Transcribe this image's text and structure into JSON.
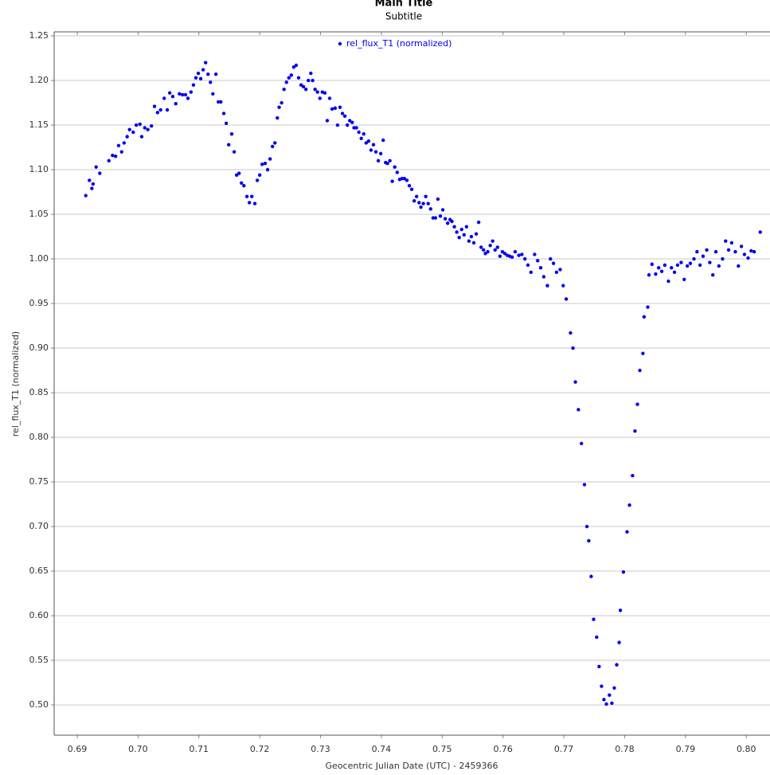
{
  "chart_data": {
    "type": "scatter",
    "title": "Main Title",
    "subtitle": "Subtitle",
    "x_label": "Geocentric Julian Date (UTC) - 2459366",
    "y_label": "rel_flux_T1 (normalized)",
    "x": [
      0.6914,
      0.692,
      0.6924,
      0.6926,
      0.6931,
      0.6937,
      0.6952,
      0.6958,
      0.6963,
      0.6968,
      0.6973,
      0.6977,
      0.6982,
      0.6986,
      0.6992,
      0.6997,
      0.7003,
      0.7006,
      0.7011,
      0.7016,
      0.7022,
      0.7027,
      0.7032,
      0.7037,
      0.7043,
      0.7048,
      0.7052,
      0.7057,
      0.7062,
      0.7068,
      0.7073,
      0.7078,
      0.7082,
      0.7087,
      0.7091,
      0.7095,
      0.7099,
      0.7103,
      0.7107,
      0.7111,
      0.7115,
      0.7119,
      0.7123,
      0.7128,
      0.7132,
      0.7136,
      0.7141,
      0.7145,
      0.7149,
      0.7154,
      0.7158,
      0.7162,
      0.7166,
      0.717,
      0.7174,
      0.7179,
      0.7183,
      0.7187,
      0.7192,
      0.7196,
      0.72,
      0.7204,
      0.7209,
      0.7213,
      0.7217,
      0.7221,
      0.7225,
      0.7229,
      0.7232,
      0.7236,
      0.724,
      0.7244,
      0.7248,
      0.7252,
      0.7256,
      0.726,
      0.7264,
      0.7268,
      0.7272,
      0.7276,
      0.728,
      0.7284,
      0.7287,
      0.7291,
      0.7295,
      0.7299,
      0.7303,
      0.7307,
      0.7311,
      0.7315,
      0.7319,
      0.7324,
      0.7328,
      0.7332,
      0.7336,
      0.734,
      0.7344,
      0.7348,
      0.7352,
      0.7355,
      0.7359,
      0.7363,
      0.7367,
      0.7371,
      0.7375,
      0.7379,
      0.7383,
      0.7387,
      0.7391,
      0.7395,
      0.7399,
      0.7403,
      0.7407,
      0.741,
      0.7414,
      0.7418,
      0.7422,
      0.7426,
      0.743,
      0.7434,
      0.7438,
      0.7442,
      0.7446,
      0.745,
      0.7454,
      0.7458,
      0.7462,
      0.7465,
      0.7469,
      0.7473,
      0.7477,
      0.7481,
      0.7485,
      0.7489,
      0.7493,
      0.7497,
      0.7501,
      0.7505,
      0.7509,
      0.7513,
      0.7516,
      0.752,
      0.7524,
      0.7528,
      0.7532,
      0.7536,
      0.754,
      0.7544,
      0.7548,
      0.7552,
      0.7556,
      0.756,
      0.7564,
      0.7568,
      0.7571,
      0.7575,
      0.7579,
      0.7583,
      0.7587,
      0.7591,
      0.7595,
      0.7599,
      0.7603,
      0.7607,
      0.7611,
      0.7615,
      0.762,
      0.7626,
      0.7631,
      0.7636,
      0.7641,
      0.7646,
      0.7652,
      0.7657,
      0.7662,
      0.7667,
      0.7673,
      0.7678,
      0.7683,
      0.7688,
      0.7694,
      0.7699,
      0.7704,
      0.7711,
      0.7715,
      0.7719,
      0.7724,
      0.7729,
      0.7734,
      0.7738,
      0.7741,
      0.7745,
      0.7749,
      0.7754,
      0.7758,
      0.7762,
      0.7766,
      0.777,
      0.7775,
      0.7779,
      0.7783,
      0.7787,
      0.7791,
      0.7793,
      0.7798,
      0.7804,
      0.7808,
      0.7813,
      0.7817,
      0.7821,
      0.7825,
      0.783,
      0.7832,
      0.7838,
      0.784,
      0.7845,
      0.7851,
      0.7856,
      0.7861,
      0.7866,
      0.7872,
      0.7877,
      0.7882,
      0.7887,
      0.7893,
      0.7898,
      0.7903,
      0.7908,
      0.7914,
      0.7919,
      0.7924,
      0.7929,
      0.7935,
      0.794,
      0.7945,
      0.795,
      0.7955,
      0.7961,
      0.7966,
      0.7971,
      0.7976,
      0.7982,
      0.7987,
      0.7992,
      0.7997,
      0.8003,
      0.8008,
      0.8013,
      0.8023
    ],
    "series": [
      {
        "name": "rel_flux_T1 (normalized)",
        "color": "#0000ee",
        "values": [
          1.071,
          1.088,
          1.079,
          1.084,
          1.103,
          1.096,
          1.11,
          1.116,
          1.115,
          1.127,
          1.12,
          1.13,
          1.137,
          1.145,
          1.142,
          1.15,
          1.151,
          1.137,
          1.147,
          1.145,
          1.149,
          1.171,
          1.164,
          1.167,
          1.18,
          1.167,
          1.186,
          1.182,
          1.174,
          1.185,
          1.184,
          1.184,
          1.18,
          1.187,
          1.195,
          1.203,
          1.208,
          1.202,
          1.212,
          1.22,
          1.207,
          1.198,
          1.185,
          1.207,
          1.176,
          1.176,
          1.163,
          1.152,
          1.128,
          1.14,
          1.12,
          1.094,
          1.096,
          1.085,
          1.082,
          1.07,
          1.063,
          1.07,
          1.062,
          1.088,
          1.094,
          1.106,
          1.107,
          1.1,
          1.112,
          1.126,
          1.13,
          1.158,
          1.17,
          1.175,
          1.19,
          1.198,
          1.203,
          1.206,
          1.215,
          1.217,
          1.203,
          1.195,
          1.193,
          1.19,
          1.2,
          1.208,
          1.2,
          1.19,
          1.187,
          1.18,
          1.187,
          1.186,
          1.155,
          1.18,
          1.168,
          1.169,
          1.15,
          1.17,
          1.163,
          1.16,
          1.15,
          1.155,
          1.153,
          1.147,
          1.147,
          1.142,
          1.135,
          1.14,
          1.13,
          1.132,
          1.122,
          1.128,
          1.12,
          1.11,
          1.118,
          1.133,
          1.108,
          1.107,
          1.11,
          1.087,
          1.103,
          1.097,
          1.089,
          1.09,
          1.09,
          1.088,
          1.082,
          1.078,
          1.065,
          1.07,
          1.063,
          1.058,
          1.062,
          1.07,
          1.062,
          1.056,
          1.046,
          1.046,
          1.067,
          1.048,
          1.055,
          1.045,
          1.04,
          1.044,
          1.042,
          1.036,
          1.03,
          1.024,
          1.033,
          1.027,
          1.036,
          1.02,
          1.025,
          1.018,
          1.028,
          1.041,
          1.013,
          1.01,
          1.006,
          1.008,
          1.015,
          1.02,
          1.01,
          1.013,
          1.003,
          1.008,
          1.006,
          1.004,
          1.003,
          1.002,
          1.008,
          1.004,
          1.005,
          1.0,
          0.993,
          0.985,
          1.005,
          0.998,
          0.99,
          0.98,
          0.97,
          1.0,
          0.995,
          0.985,
          0.988,
          0.97,
          0.955,
          0.917,
          0.9,
          0.862,
          0.831,
          0.793,
          0.747,
          0.7,
          0.684,
          0.644,
          0.596,
          0.576,
          0.543,
          0.521,
          0.506,
          0.501,
          0.511,
          0.502,
          0.519,
          0.545,
          0.57,
          0.606,
          0.649,
          0.694,
          0.724,
          0.757,
          0.807,
          0.837,
          0.875,
          0.894,
          0.935,
          0.946,
          0.982,
          0.994,
          0.983,
          0.99,
          0.986,
          0.993,
          0.975,
          0.99,
          0.985,
          0.993,
          0.996,
          0.977,
          0.992,
          0.995,
          1.0,
          1.008,
          0.993,
          1.003,
          1.01,
          0.996,
          0.982,
          1.008,
          0.992,
          1.0,
          1.02,
          1.01,
          1.018,
          1.008,
          0.992,
          1.014,
          1.005,
          1.001,
          1.009,
          1.008,
          1.03
        ]
      }
    ],
    "xlim": [
      0.6862,
      0.8039
    ],
    "ylim": [
      0.4661,
      1.2545
    ],
    "xticks": [
      0.69,
      {
        "value": 0.7,
        "label": "0.70"
      },
      0.71,
      0.72,
      0.73,
      0.74,
      0.75,
      0.76,
      0.77,
      0.78,
      0.79,
      {
        "value": 0.8,
        "label": "0.80"
      }
    ],
    "yticks": [
      {
        "value": 0.5,
        "label": "0.50"
      },
      0.55,
      {
        "value": 0.6,
        "label": "0.60"
      },
      0.65,
      {
        "value": 0.7,
        "label": "0.70"
      },
      0.75,
      {
        "value": 0.8,
        "label": "0.80"
      },
      0.85,
      {
        "value": 0.9,
        "label": "0.90"
      },
      0.95,
      {
        "value": 1.0,
        "label": "1.00"
      },
      1.05,
      {
        "value": 1.1,
        "label": "1.10"
      },
      1.15,
      {
        "value": 1.2,
        "label": "1.20"
      },
      1.25
    ],
    "grid": true,
    "legend": "top"
  }
}
